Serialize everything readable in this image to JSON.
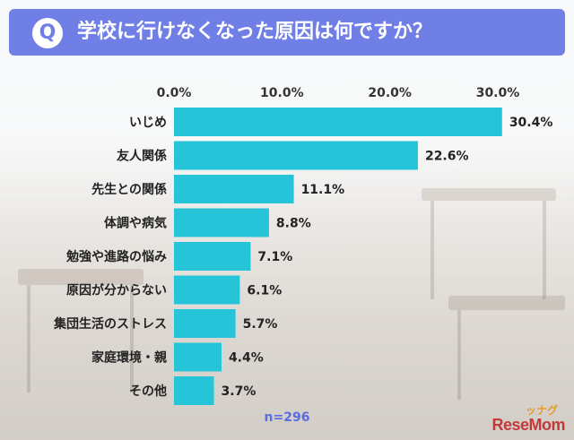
{
  "header": {
    "badge": "Q",
    "title": "学校に行けなくなった原因は何ですか？"
  },
  "colors": {
    "header": "#6f7fe6",
    "bar": "#26c4d8",
    "sample_text": "#5a6ce0"
  },
  "chart_data": {
    "type": "bar",
    "orientation": "horizontal",
    "categories": [
      "いじめ",
      "友人関係",
      "先生との関係",
      "体調や病気",
      "勉強や進路の悩み",
      "原因が分からない",
      "集団生活のストレス",
      "家庭環境・親",
      "その他"
    ],
    "values": [
      30.4,
      22.6,
      11.1,
      8.8,
      7.1,
      6.1,
      5.7,
      4.4,
      3.7
    ],
    "value_labels": [
      "30.4%",
      "22.6%",
      "11.1%",
      "8.8%",
      "7.1%",
      "6.1%",
      "5.7%",
      "4.4%",
      "3.7%"
    ],
    "xticks": [
      "0.0%",
      "10.0%",
      "20.0%",
      "30.0%"
    ],
    "xtick_values": [
      0,
      10,
      20,
      30
    ],
    "xlim": [
      0,
      30
    ],
    "grid": false,
    "legend": "none"
  },
  "sample_size": "n=296",
  "logo": {
    "text": "ReseMom",
    "ornament": "ッナグ"
  }
}
